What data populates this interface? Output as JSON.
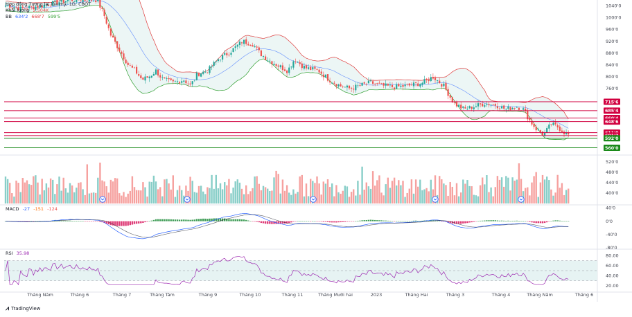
{
  "header": {
    "title": "Hợp đồng Tương lai lúa mỳ, 1D, CBOT",
    "volume_label": "Khối lượng",
    "volume_value": "2.504K",
    "bb_label": "BB",
    "bb_values": [
      "634'2",
      "668'7",
      "599'5"
    ]
  },
  "macd_header": {
    "label": "MACD",
    "values": [
      "-27",
      "-151",
      "-124"
    ]
  },
  "rsi_header": {
    "label": "RSI",
    "value": "35.98"
  },
  "brand": {
    "name": "TradingView",
    "logo_icon": "tradingview-logo-icon"
  },
  "colors": {
    "up": "#26a69a",
    "down": "#ef5350",
    "bb_upper": "#e03c3c",
    "bb_lower": "#2e9e2e",
    "bb_basis": "#2962ff",
    "resistance": "#d1003f",
    "support": "#1a8a1a",
    "macd_line": "#2962ff",
    "signal_line": "#ff6d00",
    "rsi_line": "#9c27b0",
    "rsi_band": "#e6f3f3"
  },
  "chart_data": [
    {
      "type": "candlestick",
      "title": "Hợp đồng Tương lai lúa mỳ, 1D, CBOT",
      "x_tick_labels": [
        "Tháng Năm",
        "Tháng 6",
        "Tháng 7",
        "Tháng Tám",
        "Tháng 9",
        "Tháng 10",
        "Tháng 11",
        "Tháng Mười hai",
        "2023",
        "Tháng Hai",
        "Tháng 3",
        "Tháng 4",
        "Tháng Năm",
        "Tháng 6"
      ],
      "x_ticks_x": [
        58,
        115,
        176,
        234,
        300,
        361,
        422,
        484,
        543,
        601,
        657,
        723,
        779,
        843
      ],
      "y_tick_labels": [
        "1040'0",
        "1000'0",
        "960'0",
        "920'0",
        "880'0",
        "840'0",
        "800'0",
        "760'0"
      ],
      "ylim": [
        540,
        1050
      ],
      "keypoints": [
        [
          14,
          1040
        ],
        [
          30,
          1030
        ],
        [
          60,
          1040
        ],
        [
          100,
          1060
        ],
        [
          140,
          1060
        ],
        [
          150,
          1010
        ],
        [
          160,
          940
        ],
        [
          175,
          880
        ],
        [
          185,
          840
        ],
        [
          195,
          820
        ],
        [
          205,
          790
        ],
        [
          215,
          800
        ],
        [
          225,
          820
        ],
        [
          235,
          790
        ],
        [
          250,
          780
        ],
        [
          265,
          790
        ],
        [
          275,
          770
        ],
        [
          285,
          810
        ],
        [
          300,
          820
        ],
        [
          315,
          860
        ],
        [
          330,
          880
        ],
        [
          350,
          920
        ],
        [
          365,
          910
        ],
        [
          375,
          880
        ],
        [
          385,
          860
        ],
        [
          400,
          840
        ],
        [
          415,
          820
        ],
        [
          425,
          860
        ],
        [
          440,
          830
        ],
        [
          460,
          820
        ],
        [
          475,
          790
        ],
        [
          490,
          770
        ],
        [
          505,
          760
        ],
        [
          520,
          770
        ],
        [
          535,
          780
        ],
        [
          550,
          770
        ],
        [
          570,
          765
        ],
        [
          590,
          770
        ],
        [
          610,
          780
        ],
        [
          625,
          800
        ],
        [
          640,
          770
        ],
        [
          655,
          710
        ],
        [
          670,
          690
        ],
        [
          685,
          700
        ],
        [
          700,
          710
        ],
        [
          715,
          705
        ],
        [
          730,
          690
        ],
        [
          745,
          700
        ],
        [
          755,
          690
        ],
        [
          765,
          650
        ],
        [
          775,
          620
        ],
        [
          785,
          605
        ],
        [
          795,
          640
        ],
        [
          805,
          630
        ],
        [
          815,
          610
        ],
        [
          823,
          600
        ]
      ],
      "bollinger": {
        "upper": "BB 20,2",
        "basis": "SMA 20",
        "lower": "BB 20,2",
        "last": [
          634.2,
          668.7,
          599.5
        ]
      },
      "horizontal_levels": [
        {
          "label": "715'6",
          "value": 715.6,
          "kind": "resistance"
        },
        {
          "label": "685'4",
          "value": 685.4,
          "kind": "resistance"
        },
        {
          "label": "660'4",
          "value": 660.4,
          "kind": "resistance"
        },
        {
          "label": "648'6",
          "value": 648.6,
          "kind": "resistance"
        },
        {
          "label": "611'0",
          "value": 611.0,
          "kind": "resistance"
        },
        {
          "label": "601'2",
          "value": 601.2,
          "kind": "resistance",
          "current": true
        },
        {
          "label": "592'0",
          "value": 592.0,
          "kind": "support"
        },
        {
          "label": "560'0",
          "value": 560.0,
          "kind": "support"
        }
      ]
    },
    {
      "type": "bar",
      "title": "Khối lượng",
      "y_tick_labels": [
        "520'0",
        "480'0",
        "440'0",
        "400'0"
      ],
      "ylim": [
        360,
        540
      ],
      "last": "2.504K",
      "event_markers_x": [
        148,
        270,
        452,
        628,
        752
      ]
    },
    {
      "type": "line",
      "title": "MACD",
      "y_tick_labels": [
        "40'0",
        "0'0",
        "-40'0",
        "-80'0"
      ],
      "ylim": [
        -80,
        45
      ],
      "last": {
        "macd": -27,
        "signal": -151,
        "histogram": -124
      }
    },
    {
      "type": "line",
      "title": "RSI",
      "y_tick_labels": [
        "80.00",
        "60.00",
        "40.00",
        "20.00"
      ],
      "ylim": [
        10,
        90
      ],
      "band": [
        30,
        70
      ],
      "last": 35.98
    }
  ]
}
